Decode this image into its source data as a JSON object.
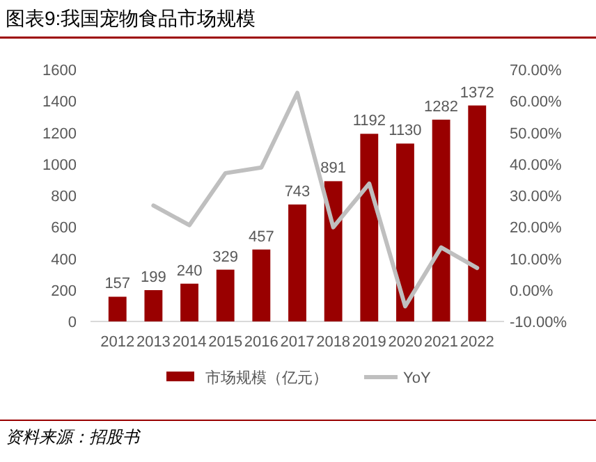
{
  "chart_data": {
    "type": "bar",
    "title": "图表9:我国宠物食品市场规模",
    "categories": [
      "2012",
      "2013",
      "2014",
      "2015",
      "2016",
      "2017",
      "2018",
      "2019",
      "2020",
      "2021",
      "2022"
    ],
    "series": [
      {
        "name": "市场规模（亿元）",
        "color": "#990000",
        "values": [
          157,
          199,
          240,
          329,
          457,
          743,
          891,
          1192,
          1130,
          1282,
          1372
        ],
        "value_labels": [
          "157",
          "199",
          "240",
          "329",
          "457",
          "743",
          "891",
          "1192",
          "1130",
          "1282",
          "1372"
        ]
      },
      {
        "name": "YoY",
        "type": "line",
        "axis": "y2",
        "color": "#bfbfbf",
        "values": [
          null,
          26.8,
          20.6,
          37.1,
          38.9,
          62.6,
          19.9,
          33.8,
          -5.2,
          13.5,
          7.0
        ]
      }
    ],
    "ylim": [
      0,
      1600
    ],
    "yticks": [
      0,
      200,
      400,
      600,
      800,
      1000,
      1200,
      1400,
      1600
    ],
    "y2lim": [
      -10,
      70
    ],
    "y2ticks": [
      {
        "value": -10,
        "label": "-10.00%"
      },
      {
        "value": 0,
        "label": "0.00%"
      },
      {
        "value": 10,
        "label": "10.00%"
      },
      {
        "value": 20,
        "label": "20.00%"
      },
      {
        "value": 30,
        "label": "30.00%"
      },
      {
        "value": 40,
        "label": "40.00%"
      },
      {
        "value": 50,
        "label": "50.00%"
      },
      {
        "value": 60,
        "label": "60.00%"
      },
      {
        "value": 70,
        "label": "70.00%"
      }
    ],
    "grid": false,
    "legend": "bottom",
    "marker": "none",
    "line_style": "solid",
    "annotations": [
      "资料来源：招股书"
    ]
  }
}
